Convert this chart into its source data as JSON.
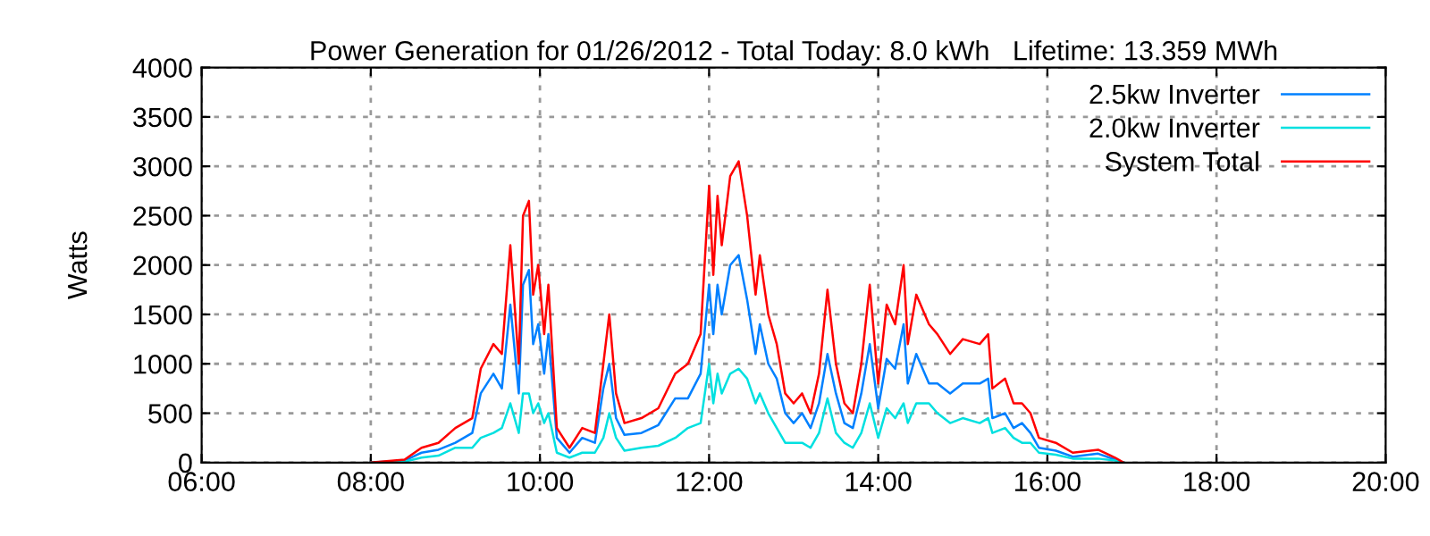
{
  "chart_data": {
    "type": "line",
    "title": "Power Generation for 01/26/2012 - Total Today: 8.0 kWh   Lifetime: 13.359 MWh",
    "ylabel": "Watts",
    "x": [
      8.0,
      8.4,
      8.6,
      8.8,
      9.0,
      9.2,
      9.3,
      9.45,
      9.55,
      9.65,
      9.75,
      9.8,
      9.87,
      9.92,
      9.98,
      10.05,
      10.1,
      10.2,
      10.35,
      10.5,
      10.65,
      10.75,
      10.82,
      10.9,
      11.0,
      11.2,
      11.4,
      11.6,
      11.75,
      11.9,
      12.0,
      12.05,
      12.1,
      12.15,
      12.25,
      12.35,
      12.45,
      12.55,
      12.6,
      12.7,
      12.8,
      12.9,
      13.0,
      13.1,
      13.2,
      13.3,
      13.4,
      13.5,
      13.6,
      13.7,
      13.8,
      13.9,
      14.0,
      14.1,
      14.2,
      14.3,
      14.35,
      14.45,
      14.6,
      14.7,
      14.85,
      15.0,
      15.2,
      15.3,
      15.35,
      15.5,
      15.6,
      15.7,
      15.8,
      15.9,
      16.1,
      16.3,
      16.6,
      16.8,
      16.9
    ],
    "series": [
      {
        "name": "2.5kw Inverter",
        "color": "#0080ff",
        "values": [
          0,
          20,
          100,
          130,
          200,
          300,
          700,
          900,
          750,
          1600,
          700,
          1800,
          1950,
          1200,
          1400,
          900,
          1300,
          250,
          100,
          250,
          200,
          750,
          1000,
          450,
          280,
          300,
          380,
          650,
          650,
          900,
          1800,
          1300,
          1800,
          1500,
          2000,
          2100,
          1650,
          1100,
          1400,
          1000,
          850,
          500,
          400,
          500,
          350,
          600,
          1100,
          700,
          400,
          350,
          700,
          1200,
          550,
          1050,
          950,
          1400,
          800,
          1100,
          800,
          800,
          700,
          800,
          800,
          850,
          450,
          500,
          350,
          400,
          300,
          150,
          120,
          60,
          90,
          30,
          0
        ]
      },
      {
        "name": "2.0kw Inverter",
        "color": "#00e0e0",
        "values": [
          0,
          10,
          50,
          70,
          150,
          150,
          250,
          300,
          350,
          600,
          300,
          700,
          700,
          500,
          600,
          400,
          500,
          100,
          50,
          100,
          100,
          250,
          500,
          250,
          120,
          150,
          170,
          250,
          350,
          400,
          1000,
          600,
          900,
          700,
          900,
          950,
          850,
          600,
          700,
          500,
          350,
          200,
          200,
          200,
          150,
          300,
          650,
          300,
          200,
          150,
          300,
          600,
          250,
          550,
          450,
          600,
          400,
          600,
          600,
          500,
          400,
          450,
          400,
          450,
          300,
          350,
          250,
          200,
          200,
          100,
          80,
          40,
          40,
          20,
          0
        ]
      },
      {
        "name": "System Total",
        "color": "#ff0000",
        "values": [
          0,
          30,
          150,
          200,
          350,
          450,
          950,
          1200,
          1100,
          2200,
          1000,
          2500,
          2650,
          1700,
          2000,
          1300,
          1800,
          350,
          150,
          350,
          300,
          1000,
          1500,
          700,
          400,
          450,
          550,
          900,
          1000,
          1300,
          2800,
          1900,
          2700,
          2200,
          2900,
          3050,
          2500,
          1700,
          2100,
          1500,
          1200,
          700,
          600,
          700,
          500,
          900,
          1750,
          1000,
          600,
          500,
          1000,
          1800,
          800,
          1600,
          1400,
          2000,
          1200,
          1700,
          1400,
          1300,
          1100,
          1250,
          1200,
          1300,
          750,
          850,
          600,
          600,
          500,
          250,
          200,
          100,
          130,
          50,
          0
        ]
      }
    ],
    "xlim": [
      6,
      20
    ],
    "xticks": [
      {
        "value": 6,
        "label": "06:00"
      },
      {
        "value": 8,
        "label": "08:00"
      },
      {
        "value": 10,
        "label": "10:00"
      },
      {
        "value": 12,
        "label": "12:00"
      },
      {
        "value": 14,
        "label": "14:00"
      },
      {
        "value": 16,
        "label": "16:00"
      },
      {
        "value": 18,
        "label": "18:00"
      },
      {
        "value": 20,
        "label": "20:00"
      }
    ],
    "ylim": [
      0,
      4000
    ],
    "yticks": [
      0,
      500,
      1000,
      1500,
      2000,
      2500,
      3000,
      3500,
      4000
    ],
    "grid": true,
    "legend": "top right",
    "marker": "none",
    "line_style": "solid"
  }
}
